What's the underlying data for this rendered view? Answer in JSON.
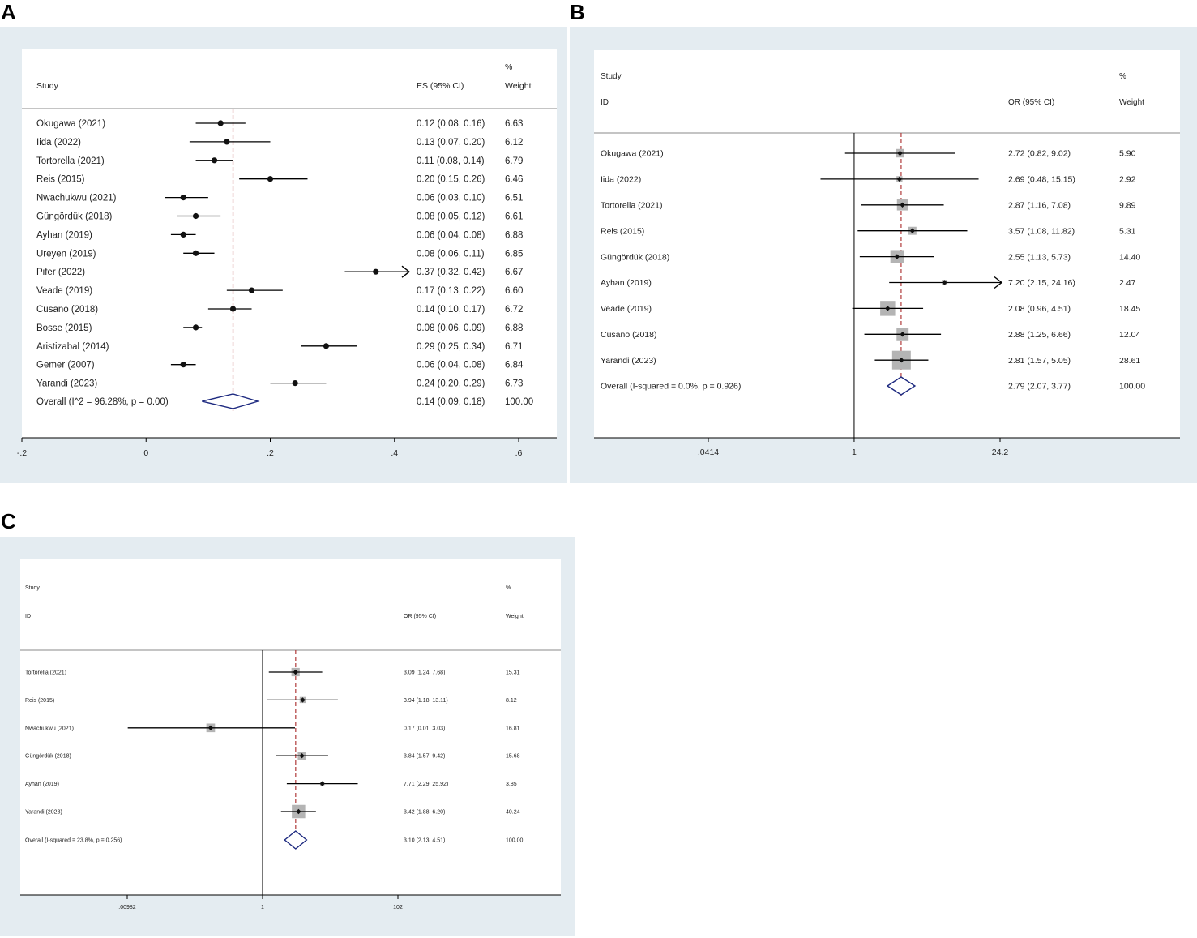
{
  "chart_data": [
    {
      "panel": "A",
      "type": "forest",
      "xscale": "linear",
      "header": {
        "study": "Study",
        "es": "ES (95% CI)",
        "pct": "%",
        "weight": "Weight"
      },
      "null_line": null,
      "ref_line": 0.14,
      "xlim": [
        -0.2,
        0.6
      ],
      "ticks": [
        {
          "value": -0.2,
          "label": "-.2"
        },
        {
          "value": 0,
          "label": "0"
        },
        {
          "value": 0.2,
          "label": ".2"
        },
        {
          "value": 0.4,
          "label": ".4"
        },
        {
          "value": 0.6,
          "label": ".6"
        }
      ],
      "studies": [
        {
          "name": "Okugawa (2021)",
          "es": 0.12,
          "lo": 0.08,
          "hi": 0.16,
          "ci_text": "0.12 (0.08, 0.16)",
          "weight": "6.63"
        },
        {
          "name": "Iida (2022)",
          "es": 0.13,
          "lo": 0.07,
          "hi": 0.2,
          "ci_text": "0.13 (0.07, 0.20)",
          "weight": "6.12"
        },
        {
          "name": "Tortorella (2021)",
          "es": 0.11,
          "lo": 0.08,
          "hi": 0.14,
          "ci_text": "0.11 (0.08, 0.14)",
          "weight": "6.79"
        },
        {
          "name": "Reis (2015)",
          "es": 0.2,
          "lo": 0.15,
          "hi": 0.26,
          "ci_text": "0.20 (0.15, 0.26)",
          "weight": "6.46"
        },
        {
          "name": "Nwachukwu (2021)",
          "es": 0.06,
          "lo": 0.03,
          "hi": 0.1,
          "ci_text": "0.06 (0.03, 0.10)",
          "weight": "6.51"
        },
        {
          "name": "Güngördük (2018)",
          "es": 0.08,
          "lo": 0.05,
          "hi": 0.12,
          "ci_text": "0.08 (0.05, 0.12)",
          "weight": "6.61"
        },
        {
          "name": "Ayhan (2019)",
          "es": 0.06,
          "lo": 0.04,
          "hi": 0.08,
          "ci_text": "0.06 (0.04, 0.08)",
          "weight": "6.88"
        },
        {
          "name": "Ureyen (2019)",
          "es": 0.08,
          "lo": 0.06,
          "hi": 0.11,
          "ci_text": "0.08 (0.06, 0.11)",
          "weight": "6.85"
        },
        {
          "name": "Pifer (2022)",
          "es": 0.37,
          "lo": 0.32,
          "hi": 0.42,
          "ci_text": "0.37 (0.32, 0.42)",
          "weight": "6.67",
          "arrow": true
        },
        {
          "name": "Veade (2019)",
          "es": 0.17,
          "lo": 0.13,
          "hi": 0.22,
          "ci_text": "0.17 (0.13, 0.22)",
          "weight": "6.60"
        },
        {
          "name": "Cusano (2018)",
          "es": 0.14,
          "lo": 0.1,
          "hi": 0.17,
          "ci_text": "0.14 (0.10, 0.17)",
          "weight": "6.72"
        },
        {
          "name": "Bosse (2015)",
          "es": 0.08,
          "lo": 0.06,
          "hi": 0.09,
          "ci_text": "0.08 (0.06, 0.09)",
          "weight": "6.88"
        },
        {
          "name": "Aristizabal (2014)",
          "es": 0.29,
          "lo": 0.25,
          "hi": 0.34,
          "ci_text": "0.29 (0.25, 0.34)",
          "weight": "6.71"
        },
        {
          "name": "Gemer (2007)",
          "es": 0.06,
          "lo": 0.04,
          "hi": 0.08,
          "ci_text": "0.06 (0.04, 0.08)",
          "weight": "6.84"
        },
        {
          "name": "Yarandi (2023)",
          "es": 0.24,
          "lo": 0.2,
          "hi": 0.29,
          "ci_text": "0.24 (0.20, 0.29)",
          "weight": "6.73"
        }
      ],
      "overall": {
        "name": "Overall  (I^2 = 96.28%, p = 0.00)",
        "es": 0.14,
        "lo": 0.09,
        "hi": 0.18,
        "ci_text": "0.14 (0.09, 0.18)",
        "weight": "100.00"
      }
    },
    {
      "panel": "B",
      "type": "forest",
      "xscale": "log",
      "header": {
        "study": "Study",
        "id": "ID",
        "es": "OR (95% CI)",
        "pct": "%",
        "weight": "Weight"
      },
      "null_line": 1,
      "ref_line": 2.79,
      "xlim": [
        0.0414,
        24.2
      ],
      "ticks": [
        {
          "value": 0.0414,
          "label": ".0414"
        },
        {
          "value": 1,
          "label": "1"
        },
        {
          "value": 24.2,
          "label": "24.2"
        }
      ],
      "studies": [
        {
          "name": "Okugawa (2021)",
          "es": 2.72,
          "lo": 0.82,
          "hi": 9.02,
          "ci_text": "2.72 (0.82, 9.02)",
          "weight": "5.90"
        },
        {
          "name": "Iida (2022)",
          "es": 2.69,
          "lo": 0.48,
          "hi": 15.15,
          "ci_text": "2.69 (0.48, 15.15)",
          "weight": "2.92"
        },
        {
          "name": "Tortorella (2021)",
          "es": 2.87,
          "lo": 1.16,
          "hi": 7.08,
          "ci_text": "2.87 (1.16, 7.08)",
          "weight": "9.89"
        },
        {
          "name": "Reis (2015)",
          "es": 3.57,
          "lo": 1.08,
          "hi": 11.82,
          "ci_text": "3.57 (1.08, 11.82)",
          "weight": "5.31"
        },
        {
          "name": "Güngördük (2018)",
          "es": 2.55,
          "lo": 1.13,
          "hi": 5.73,
          "ci_text": "2.55 (1.13, 5.73)",
          "weight": "14.40"
        },
        {
          "name": "Ayhan (2019)",
          "es": 7.2,
          "lo": 2.15,
          "hi": 24.16,
          "ci_text": "7.20 (2.15, 24.16)",
          "weight": "2.47",
          "arrow": true
        },
        {
          "name": "Veade (2019)",
          "es": 2.08,
          "lo": 0.96,
          "hi": 4.51,
          "ci_text": "2.08 (0.96, 4.51)",
          "weight": "18.45"
        },
        {
          "name": "Cusano (2018)",
          "es": 2.88,
          "lo": 1.25,
          "hi": 6.66,
          "ci_text": "2.88 (1.25, 6.66)",
          "weight": "12.04"
        },
        {
          "name": "Yarandi (2023)",
          "es": 2.81,
          "lo": 1.57,
          "hi": 5.05,
          "ci_text": "2.81 (1.57, 5.05)",
          "weight": "28.61"
        }
      ],
      "overall": {
        "name": "Overall  (I-squared = 0.0%, p = 0.926)",
        "es": 2.79,
        "lo": 2.07,
        "hi": 3.77,
        "ci_text": "2.79 (2.07, 3.77)",
        "weight": "100.00"
      }
    },
    {
      "panel": "C",
      "type": "forest",
      "xscale": "log",
      "header": {
        "study": "Study",
        "id": "ID",
        "es": "OR (95% CI)",
        "pct": "%",
        "weight": "Weight"
      },
      "null_line": 1,
      "ref_line": 3.1,
      "xlim": [
        0.00982,
        102
      ],
      "ticks": [
        {
          "value": 0.00982,
          "label": ".00982"
        },
        {
          "value": 1,
          "label": "1"
        },
        {
          "value": 102,
          "label": "102"
        }
      ],
      "studies": [
        {
          "name": "Tortorella (2021)",
          "es": 3.09,
          "lo": 1.24,
          "hi": 7.68,
          "ci_text": "3.09 (1.24, 7.68)",
          "weight": "15.31"
        },
        {
          "name": "Reis (2015)",
          "es": 3.94,
          "lo": 1.18,
          "hi": 13.11,
          "ci_text": "3.94 (1.18, 13.11)",
          "weight": "8.12"
        },
        {
          "name": "Nwachukwu (2021)",
          "es": 0.17,
          "lo": 0.01,
          "hi": 3.03,
          "ci_text": "0.17 (0.01, 3.03)",
          "weight": "16.81"
        },
        {
          "name": "Güngördük (2018)",
          "es": 3.84,
          "lo": 1.57,
          "hi": 9.42,
          "ci_text": "3.84 (1.57, 9.42)",
          "weight": "15.68"
        },
        {
          "name": "Ayhan (2019)",
          "es": 7.71,
          "lo": 2.29,
          "hi": 25.92,
          "ci_text": "7.71 (2.29, 25.92)",
          "weight": "3.85"
        },
        {
          "name": "Yarandi (2023)",
          "es": 3.42,
          "lo": 1.88,
          "hi": 6.2,
          "ci_text": "3.42 (1.88, 6.20)",
          "weight": "40.24"
        }
      ],
      "overall": {
        "name": "Overall  (I-squared = 23.8%, p = 0.256)",
        "es": 3.1,
        "lo": 2.13,
        "hi": 4.51,
        "ci_text": "3.10 (2.13, 4.51)",
        "weight": "100.00"
      }
    }
  ]
}
